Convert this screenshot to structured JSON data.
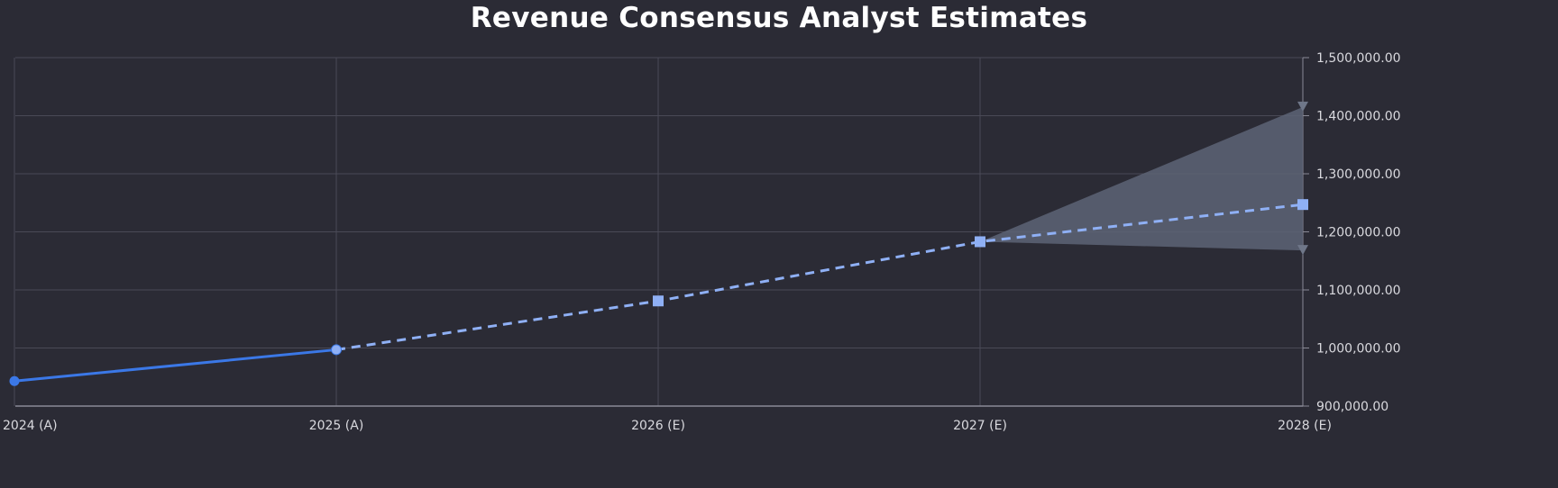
{
  "chart_data": {
    "type": "line",
    "title": "Revenue Consensus Analyst Estimates",
    "xlabel": "",
    "ylabel": "",
    "categories": [
      "2024 (A)",
      "2025 (A)",
      "2026 (E)",
      "2027 (E)",
      "2028 (E)"
    ],
    "ylim": [
      900000,
      1500000
    ],
    "y_ticks": [
      900000,
      1000000,
      1100000,
      1200000,
      1300000,
      1400000,
      1500000
    ],
    "y_tick_labels": [
      "900,000.00",
      "1,000,000.00",
      "1,100,000.00",
      "1,200,000.00",
      "1,300,000.00",
      "1,400,000.00",
      "1,500,000.00"
    ],
    "y_axis_position": "right",
    "grid": true,
    "series": [
      {
        "role": "actual",
        "values": [
          943000,
          997000,
          null,
          null,
          null
        ]
      },
      {
        "role": "estimate",
        "values": [
          null,
          997000,
          1081000,
          1183000,
          1247000
        ]
      },
      {
        "role": "estimate-high",
        "values": [
          null,
          null,
          null,
          1183000,
          1415000
        ]
      },
      {
        "role": "estimate-low",
        "values": [
          null,
          null,
          null,
          1183000,
          1168000
        ]
      }
    ],
    "colors": {
      "background": "#2b2b35",
      "grid": "#4a4a56",
      "axis": "#8a8a96",
      "actual_line": "#3b78e7",
      "estimate_line": "#8fb0f5",
      "range_fill": "#5d6475",
      "range_marker": "#6f7789"
    }
  }
}
